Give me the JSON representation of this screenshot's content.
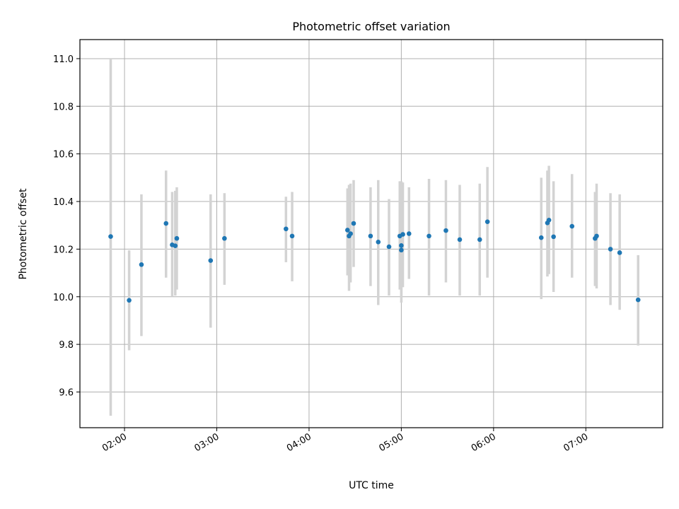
{
  "chart_data": {
    "type": "scatter",
    "title": "Photometric offset variation",
    "xlabel": "UTC time",
    "ylabel": "Photometric offset",
    "grid": true,
    "xlim": [
      "01:31",
      "07:50"
    ],
    "ylim": [
      9.45,
      11.08
    ],
    "x_ticks": [
      "02:00",
      "03:00",
      "04:00",
      "05:00",
      "06:00",
      "07:00"
    ],
    "y_ticks": [
      9.6,
      9.8,
      10.0,
      10.2,
      10.4,
      10.6,
      10.8,
      11.0
    ],
    "y_tick_labels": [
      "9.6",
      "9.8",
      "10.0",
      "10.2",
      "10.4",
      "10.6",
      "10.8",
      "11.0"
    ],
    "colors": {
      "points": "#1f77b4",
      "error_bars": "#d3d3d3",
      "grid": "#b0b0b0"
    },
    "points": [
      {
        "x": "01:51",
        "y": 10.253,
        "ylow": 9.5,
        "yhigh": 11.0
      },
      {
        "x": "02:03",
        "y": 9.985,
        "ylow": 9.775,
        "yhigh": 10.195
      },
      {
        "x": "02:11",
        "y": 10.135,
        "ylow": 9.835,
        "yhigh": 10.43
      },
      {
        "x": "02:27",
        "y": 10.308,
        "ylow": 10.08,
        "yhigh": 10.53
      },
      {
        "x": "02:31",
        "y": 10.218,
        "ylow": 10.0,
        "yhigh": 10.44
      },
      {
        "x": "02:33",
        "y": 10.214,
        "ylow": 10.005,
        "yhigh": 10.445
      },
      {
        "x": "02:34",
        "y": 10.245,
        "ylow": 10.03,
        "yhigh": 10.46
      },
      {
        "x": "02:56",
        "y": 10.152,
        "ylow": 9.87,
        "yhigh": 10.43
      },
      {
        "x": "03:05",
        "y": 10.245,
        "ylow": 10.05,
        "yhigh": 10.435
      },
      {
        "x": "03:45",
        "y": 10.285,
        "ylow": 10.145,
        "yhigh": 10.42
      },
      {
        "x": "03:49",
        "y": 10.255,
        "ylow": 10.065,
        "yhigh": 10.44
      },
      {
        "x": "04:25",
        "y": 10.28,
        "ylow": 10.09,
        "yhigh": 10.455
      },
      {
        "x": "04:26",
        "y": 10.255,
        "ylow": 10.025,
        "yhigh": 10.47
      },
      {
        "x": "04:27",
        "y": 10.265,
        "ylow": 10.06,
        "yhigh": 10.475
      },
      {
        "x": "04:29",
        "y": 10.308,
        "ylow": 10.125,
        "yhigh": 10.49
      },
      {
        "x": "04:40",
        "y": 10.255,
        "ylow": 10.045,
        "yhigh": 10.46
      },
      {
        "x": "04:45",
        "y": 10.23,
        "ylow": 9.965,
        "yhigh": 10.49
      },
      {
        "x": "04:52",
        "y": 10.21,
        "ylow": 10.005,
        "yhigh": 10.41
      },
      {
        "x": "04:59",
        "y": 10.255,
        "ylow": 10.03,
        "yhigh": 10.485
      },
      {
        "x": "05:00",
        "y": 10.215,
        "ylow": 10.0,
        "yhigh": 10.485
      },
      {
        "x": "05:00",
        "y": 10.196,
        "ylow": 9.975,
        "yhigh": 10.415
      },
      {
        "x": "05:01",
        "y": 10.262,
        "ylow": 10.04,
        "yhigh": 10.48
      },
      {
        "x": "05:05",
        "y": 10.265,
        "ylow": 10.075,
        "yhigh": 10.46
      },
      {
        "x": "05:18",
        "y": 10.255,
        "ylow": 10.005,
        "yhigh": 10.495
      },
      {
        "x": "05:29",
        "y": 10.278,
        "ylow": 10.06,
        "yhigh": 10.49
      },
      {
        "x": "05:38",
        "y": 10.24,
        "ylow": 10.005,
        "yhigh": 10.47
      },
      {
        "x": "05:51",
        "y": 10.24,
        "ylow": 10.005,
        "yhigh": 10.475
      },
      {
        "x": "05:56",
        "y": 10.315,
        "ylow": 10.08,
        "yhigh": 10.545
      },
      {
        "x": "06:31",
        "y": 10.248,
        "ylow": 9.99,
        "yhigh": 10.5
      },
      {
        "x": "06:35",
        "y": 10.31,
        "ylow": 10.085,
        "yhigh": 10.53
      },
      {
        "x": "06:36",
        "y": 10.322,
        "ylow": 10.095,
        "yhigh": 10.55
      },
      {
        "x": "06:39",
        "y": 10.252,
        "ylow": 10.02,
        "yhigh": 10.485
      },
      {
        "x": "06:51",
        "y": 10.296,
        "ylow": 10.08,
        "yhigh": 10.515
      },
      {
        "x": "07:06",
        "y": 10.245,
        "ylow": 10.045,
        "yhigh": 10.44
      },
      {
        "x": "07:07",
        "y": 10.255,
        "ylow": 10.035,
        "yhigh": 10.475
      },
      {
        "x": "07:16",
        "y": 10.2,
        "ylow": 9.965,
        "yhigh": 10.435
      },
      {
        "x": "07:22",
        "y": 10.185,
        "ylow": 9.945,
        "yhigh": 10.43
      },
      {
        "x": "07:34",
        "y": 9.987,
        "ylow": 9.795,
        "yhigh": 10.175
      }
    ]
  }
}
